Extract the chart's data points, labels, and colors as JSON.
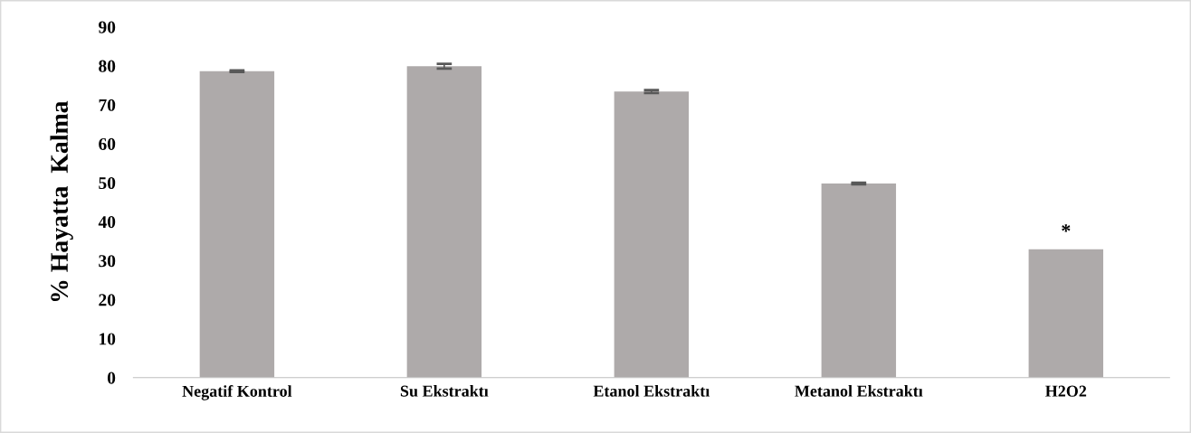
{
  "chart_data": {
    "type": "bar",
    "ylabel": "% Hayatta  Kalma",
    "categories": [
      "Negatif Kontrol",
      "Su Ekstraktı",
      "Etanol Ekstraktı",
      "Metanol Ekstraktı",
      "H2O2"
    ],
    "values": [
      78.6,
      79.9,
      73.4,
      49.8,
      32.9
    ],
    "errors": [
      0.2,
      0.6,
      0.4,
      0.2,
      null
    ],
    "color": "#aeaaaa",
    "ylim": [
      0,
      90
    ],
    "yticks": [
      0,
      10,
      20,
      30,
      40,
      50,
      60,
      70,
      80,
      90
    ],
    "grid": false,
    "annotations": [
      {
        "text": "*",
        "x": "H2O2",
        "y": 32.9
      }
    ]
  }
}
